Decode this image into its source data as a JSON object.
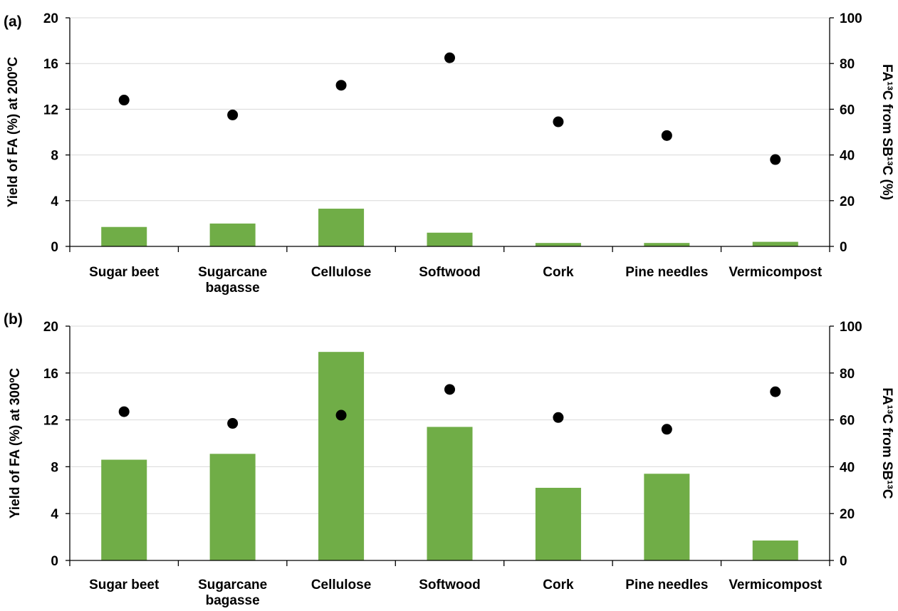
{
  "chart_data": [
    {
      "type": "bar",
      "panel_label": "(a)",
      "categories": [
        "Sugar beet",
        "Sugarcane bagasse",
        "Cellulose",
        "Softwood",
        "Cork",
        "Pine needles",
        "Vermicompost"
      ],
      "category_lines": [
        [
          "Sugar beet"
        ],
        [
          "Sugarcane",
          "bagasse"
        ],
        [
          "Cellulose"
        ],
        [
          "Softwood"
        ],
        [
          "Cork"
        ],
        [
          "Pine needles"
        ],
        [
          "Vermicompost"
        ]
      ],
      "series": [
        {
          "kind": "bar",
          "axis": "left",
          "values": [
            1.7,
            2.0,
            3.3,
            1.2,
            0.3,
            0.3,
            0.4
          ]
        },
        {
          "kind": "scatter",
          "axis": "right",
          "values": [
            64,
            57.5,
            70.5,
            82.5,
            54.5,
            48.5,
            38
          ]
        }
      ],
      "ylabel": "Yield of FA (%) at 200ºC",
      "y2label": "FA¹³C from SB¹³C (%)",
      "ylim": [
        0,
        20
      ],
      "y2lim": [
        0,
        100
      ],
      "yticks": [
        0,
        4,
        8,
        12,
        16,
        20
      ],
      "y2ticks": [
        0,
        20,
        40,
        60,
        80,
        100
      ],
      "grid": true,
      "colors": {
        "bar": "#70ad47",
        "marker": "#000000",
        "grid": "#d9d9d9"
      }
    },
    {
      "type": "bar",
      "panel_label": "(b)",
      "categories": [
        "Sugar beet",
        "Sugarcane bagasse",
        "Cellulose",
        "Softwood",
        "Cork",
        "Pine needles",
        "Vermicompost"
      ],
      "category_lines": [
        [
          "Sugar beet"
        ],
        [
          "Sugarcane",
          "bagasse"
        ],
        [
          "Cellulose"
        ],
        [
          "Softwood"
        ],
        [
          "Cork"
        ],
        [
          "Pine needles"
        ],
        [
          "Vermicompost"
        ]
      ],
      "series": [
        {
          "kind": "bar",
          "axis": "left",
          "values": [
            8.6,
            9.1,
            17.8,
            11.4,
            6.2,
            7.4,
            1.7
          ]
        },
        {
          "kind": "scatter",
          "axis": "right",
          "values": [
            63.5,
            58.5,
            62,
            73,
            61,
            56,
            72
          ]
        }
      ],
      "ylabel": "Yield of FA (%) at 300ºC",
      "y2label": "FA¹³C from SB¹³C",
      "ylim": [
        0,
        20
      ],
      "y2lim": [
        0,
        100
      ],
      "yticks": [
        0,
        4,
        8,
        12,
        16,
        20
      ],
      "y2ticks": [
        0,
        20,
        40,
        60,
        80,
        100
      ],
      "grid": true,
      "colors": {
        "bar": "#70ad47",
        "marker": "#000000",
        "grid": "#d9d9d9"
      }
    }
  ]
}
